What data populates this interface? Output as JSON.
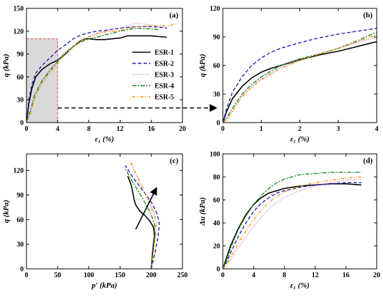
{
  "legend": [
    "ESR-1",
    "ESR-2",
    "ESR-3",
    "ESR-4",
    "ESR-5"
  ],
  "styles": {
    "ESR-1": {
      "color": "#000000",
      "dash": ""
    },
    "ESR-2": {
      "color": "#1f1fb4",
      "dash": "5,3"
    },
    "ESR-3": {
      "color": "#d070d0",
      "dash": "1,2"
    },
    "ESR-4": {
      "color": "#1e8a1e",
      "dash": "6,2,2,2"
    },
    "ESR-5": {
      "color": "#ff8c00",
      "dash": "4,2,1,2,1,2"
    }
  },
  "chart_data": [
    {
      "id": "a",
      "type": "line",
      "panel_label": "(a)",
      "xlabel": "ε₁ (%)",
      "ylabel": "q (kPa)",
      "xlim": [
        0,
        20
      ],
      "ylim": [
        0,
        150
      ],
      "xticks": [
        0,
        4,
        8,
        12,
        16,
        20
      ],
      "yticks": [
        0,
        30,
        60,
        90,
        120,
        150
      ],
      "legend_position": "right-center",
      "highlight_region": {
        "x": [
          0,
          4
        ],
        "y": [
          0,
          110
        ]
      },
      "series": [
        {
          "name": "ESR-1",
          "x": [
            0,
            0.3,
            0.7,
            1.2,
            2,
            3,
            4,
            5,
            6,
            7,
            7.5,
            8,
            9,
            10,
            11,
            12,
            13,
            14,
            15,
            16,
            17,
            18
          ],
          "y": [
            0,
            25,
            45,
            60,
            70,
            77,
            82,
            90,
            100,
            108,
            110,
            110,
            109,
            109,
            110,
            111,
            114,
            114,
            114,
            114,
            113,
            112
          ]
        },
        {
          "name": "ESR-2",
          "x": [
            0,
            0.3,
            0.7,
            1.2,
            2,
            3,
            4,
            5,
            6,
            7,
            8,
            9,
            10,
            12,
            14,
            16,
            18
          ],
          "y": [
            0,
            30,
            50,
            65,
            75,
            85,
            95,
            102,
            110,
            115,
            118,
            120,
            121,
            124,
            126,
            126,
            124
          ]
        },
        {
          "name": "ESR-3",
          "x": [
            0,
            0.5,
            1,
            2,
            3,
            4,
            5,
            6,
            7,
            8,
            9,
            10,
            12,
            14,
            16,
            18
          ],
          "y": [
            0,
            12,
            35,
            55,
            70,
            82,
            92,
            100,
            106,
            112,
            116,
            120,
            124,
            131,
            128,
            125
          ]
        },
        {
          "name": "ESR-4",
          "x": [
            0,
            0.5,
            1,
            2,
            3,
            4,
            5,
            6,
            7,
            8,
            9,
            10,
            12,
            14,
            16,
            17
          ],
          "y": [
            0,
            15,
            35,
            55,
            68,
            80,
            92,
            100,
            106,
            110,
            112,
            115,
            120,
            124,
            123,
            122
          ]
        },
        {
          "name": "ESR-5",
          "x": [
            0,
            0.5,
            1,
            2,
            3,
            4,
            5,
            6,
            7,
            8,
            9,
            10,
            12,
            14,
            16,
            18,
            19.5
          ],
          "y": [
            0,
            12,
            30,
            52,
            66,
            78,
            90,
            100,
            108,
            113,
            117,
            119,
            121,
            126,
            127,
            127,
            130
          ]
        }
      ]
    },
    {
      "id": "b",
      "type": "line",
      "panel_label": "(b)",
      "xlabel": "ε₁ (%)",
      "ylabel": "q (kPa)",
      "xlim": [
        0,
        4
      ],
      "ylim": [
        0,
        120
      ],
      "xticks": [
        0,
        1,
        2,
        3,
        4
      ],
      "yticks": [
        0,
        30,
        60,
        90,
        120
      ],
      "series": [
        {
          "name": "ESR-1",
          "x": [
            0,
            0.1,
            0.25,
            0.5,
            0.75,
            1,
            1.25,
            1.5,
            2,
            2.5,
            3,
            3.5,
            4
          ],
          "y": [
            0,
            12,
            25,
            38,
            47,
            53,
            57,
            60,
            66,
            71,
            75,
            80,
            85
          ]
        },
        {
          "name": "ESR-2",
          "x": [
            0,
            0.1,
            0.25,
            0.5,
            0.75,
            1,
            1.25,
            1.5,
            2,
            2.5,
            3,
            3.5,
            4
          ],
          "y": [
            0,
            15,
            32,
            48,
            60,
            68,
            74,
            78,
            84,
            89,
            93,
            96,
            99
          ]
        },
        {
          "name": "ESR-3",
          "x": [
            0,
            0.1,
            0.25,
            0.5,
            0.75,
            1,
            1.5,
            2,
            2.5,
            3,
            3.5,
            4
          ],
          "y": [
            0,
            2,
            12,
            28,
            38,
            46,
            58,
            66,
            72,
            78,
            84,
            90
          ]
        },
        {
          "name": "ESR-4",
          "x": [
            0,
            0.1,
            0.25,
            0.5,
            0.75,
            1,
            1.5,
            2,
            2.5,
            3,
            3.5,
            4
          ],
          "y": [
            0,
            5,
            15,
            30,
            40,
            48,
            60,
            67,
            72,
            78,
            86,
            95
          ]
        },
        {
          "name": "ESR-5",
          "x": [
            0,
            0.1,
            0.25,
            0.5,
            0.75,
            1,
            1.5,
            2,
            2.5,
            3,
            3.5,
            4
          ],
          "y": [
            0,
            3,
            12,
            27,
            37,
            45,
            57,
            65,
            72,
            78,
            85,
            92
          ]
        }
      ]
    },
    {
      "id": "c",
      "type": "line",
      "panel_label": "(c)",
      "xlabel": "p′ (kPa)",
      "ylabel": "q (kPa)",
      "xlim": [
        0,
        250
      ],
      "ylim": [
        0,
        140
      ],
      "xticks": [
        0,
        50,
        100,
        150,
        200,
        250
      ],
      "yticks": [
        0,
        30,
        60,
        90,
        120
      ],
      "series": [
        {
          "name": "ESR-1",
          "x": [
            200,
            202,
            205,
            204,
            198,
            190,
            182,
            175,
            172,
            170,
            168,
            165,
            163,
            162
          ],
          "y": [
            0,
            20,
            40,
            50,
            58,
            65,
            70,
            78,
            86,
            95,
            102,
            108,
            112,
            113
          ]
        },
        {
          "name": "ESR-2",
          "x": [
            200,
            206,
            211,
            213,
            209,
            201,
            190,
            180,
            172,
            165,
            160,
            158
          ],
          "y": [
            0,
            20,
            40,
            55,
            68,
            80,
            92,
            102,
            110,
            118,
            124,
            126
          ]
        },
        {
          "name": "ESR-3",
          "x": [
            200,
            203,
            206,
            208,
            205,
            198,
            190,
            183,
            177,
            173,
            170,
            168,
            167
          ],
          "y": [
            0,
            20,
            40,
            55,
            68,
            80,
            92,
            103,
            112,
            120,
            126,
            130,
            131
          ]
        },
        {
          "name": "ESR-4",
          "x": [
            200,
            203,
            206,
            205,
            200,
            193,
            186,
            178,
            170,
            164,
            160,
            158
          ],
          "y": [
            0,
            20,
            40,
            55,
            66,
            76,
            86,
            96,
            106,
            114,
            120,
            122
          ]
        },
        {
          "name": "ESR-5",
          "x": [
            200,
            203,
            207,
            208,
            204,
            197,
            190,
            183,
            177,
            172,
            169,
            167
          ],
          "y": [
            0,
            20,
            40,
            55,
            67,
            80,
            92,
            104,
            114,
            121,
            126,
            130
          ]
        }
      ],
      "arrow": {
        "from": [
          175,
          48
        ],
        "to": [
          208,
          98
        ]
      }
    },
    {
      "id": "d",
      "type": "line",
      "panel_label": "(d)",
      "xlabel": "ε₁ (%)",
      "ylabel": "Δu (kPa)",
      "xlim": [
        0,
        20
      ],
      "ylim": [
        0,
        100
      ],
      "xticks": [
        0,
        4,
        8,
        12,
        16,
        20
      ],
      "yticks": [
        0,
        20,
        40,
        60,
        80,
        100
      ],
      "series": [
        {
          "name": "ESR-1",
          "x": [
            0,
            0.5,
            1,
            2,
            3,
            4,
            5,
            6,
            7,
            8,
            10,
            12,
            14,
            16,
            18
          ],
          "y": [
            0,
            10,
            20,
            35,
            47,
            56,
            62,
            66,
            68,
            70,
            72,
            73,
            74,
            74,
            73
          ]
        },
        {
          "name": "ESR-2",
          "x": [
            0,
            0.5,
            1,
            2,
            3,
            4,
            5,
            6,
            7,
            8,
            10,
            12,
            14,
            16,
            18
          ],
          "y": [
            0,
            6,
            14,
            28,
            40,
            50,
            57,
            62,
            66,
            68,
            71,
            73,
            74,
            75,
            75
          ]
        },
        {
          "name": "ESR-3",
          "x": [
            0,
            0.5,
            1,
            2,
            3,
            4,
            5,
            6,
            7,
            8,
            10,
            12,
            14,
            16,
            18
          ],
          "y": [
            0,
            3,
            8,
            18,
            28,
            37,
            45,
            52,
            58,
            62,
            68,
            72,
            75,
            77,
            78
          ]
        },
        {
          "name": "ESR-4",
          "x": [
            0,
            0.5,
            1,
            2,
            3,
            4,
            5,
            6,
            7,
            8,
            10,
            12,
            14,
            16,
            18
          ],
          "y": [
            0,
            8,
            18,
            34,
            46,
            56,
            64,
            70,
            75,
            78,
            82,
            83,
            84,
            84,
            84
          ]
        },
        {
          "name": "ESR-5",
          "x": [
            0,
            0.5,
            1,
            2,
            3,
            4,
            5,
            6,
            7,
            8,
            10,
            12,
            14,
            16,
            18
          ],
          "y": [
            0,
            4,
            10,
            22,
            33,
            43,
            51,
            58,
            63,
            67,
            72,
            75,
            77,
            79,
            80
          ]
        }
      ]
    }
  ]
}
